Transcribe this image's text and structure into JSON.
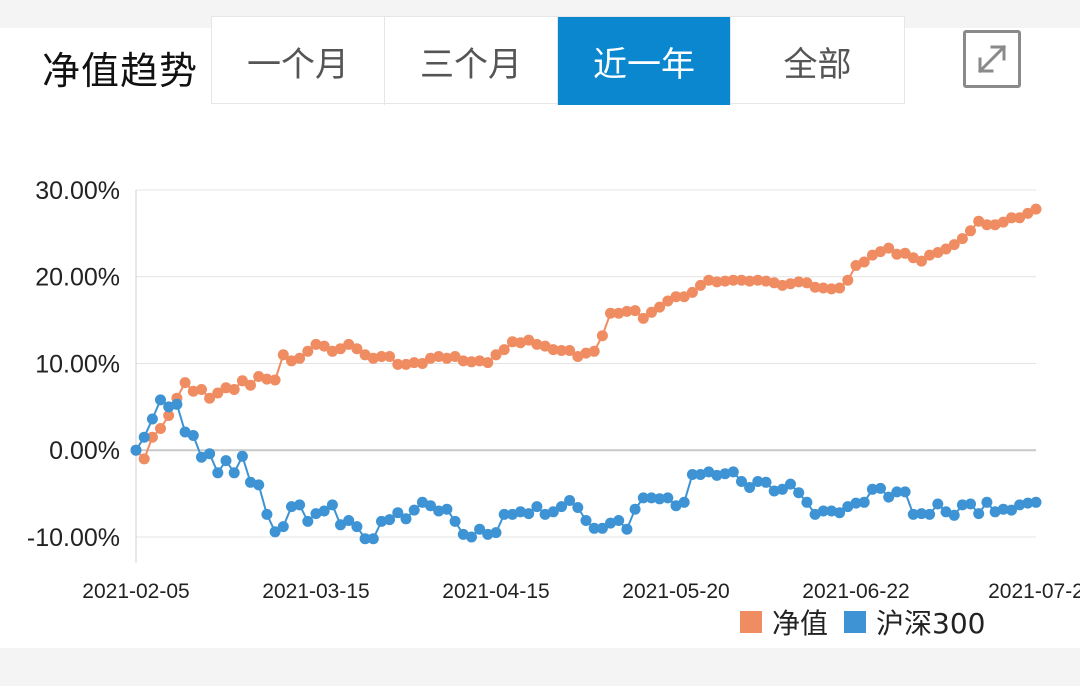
{
  "header": {
    "title": "净值趋势",
    "tabs": [
      {
        "label": "一个月",
        "active": false
      },
      {
        "label": "三个月",
        "active": false
      },
      {
        "label": "近一年",
        "active": true
      },
      {
        "label": "全部",
        "active": false
      }
    ],
    "expand_icon": "expand-icon"
  },
  "colors": {
    "nav": "#ef8c62",
    "index": "#3d93d3",
    "tab_active": "#0a87cf"
  },
  "chart_data": {
    "type": "line",
    "title": "",
    "xlabel": "",
    "ylabel": "",
    "ylim": [
      -13,
      30
    ],
    "y_ticks": [
      30,
      20,
      10,
      0,
      -10
    ],
    "y_tick_labels": [
      "30.00%",
      "20.00%",
      "10.00%",
      "0.00%",
      "-10.00%"
    ],
    "x_tick_labels": [
      "2021-02-05",
      "2021-03-15",
      "2021-04-15",
      "2021-05-20",
      "2021-06-22",
      "2021-07-2"
    ],
    "grid": true,
    "legend": "bottom-right",
    "series": [
      {
        "name": "净值",
        "color": "#ef8c62",
        "values": [
          0.0,
          -1.0,
          1.5,
          2.5,
          4.0,
          6.0,
          7.8,
          6.8,
          7.0,
          6.0,
          6.6,
          7.2,
          7.0,
          8.0,
          7.5,
          8.5,
          8.2,
          8.1,
          11.0,
          10.3,
          10.6,
          11.4,
          12.2,
          12.0,
          11.4,
          11.7,
          12.2,
          11.7,
          11.0,
          10.6,
          10.8,
          10.8,
          9.9,
          9.9,
          10.1,
          10.0,
          10.6,
          10.8,
          10.6,
          10.8,
          10.3,
          10.2,
          10.3,
          10.1,
          11.0,
          11.6,
          12.5,
          12.4,
          12.7,
          12.2,
          12.0,
          11.6,
          11.5,
          11.5,
          10.8,
          11.2,
          11.4,
          13.2,
          15.8,
          15.8,
          16.0,
          16.1,
          15.2,
          15.9,
          16.5,
          17.2,
          17.7,
          17.7,
          18.2,
          19.0,
          19.6,
          19.4,
          19.5,
          19.6,
          19.6,
          19.5,
          19.6,
          19.5,
          19.3,
          19.0,
          19.2,
          19.4,
          19.3,
          18.8,
          18.7,
          18.6,
          18.7,
          19.6,
          21.3,
          21.7,
          22.5,
          22.9,
          23.3,
          22.6,
          22.7,
          22.2,
          21.8,
          22.5,
          22.8,
          23.2,
          23.7,
          24.4,
          25.3,
          26.4,
          26.0,
          26.0,
          26.3,
          26.8,
          26.8,
          27.3,
          27.8
        ]
      },
      {
        "name": "沪深300",
        "color": "#3d93d3",
        "values": [
          0.0,
          1.5,
          3.6,
          5.8,
          5.0,
          5.3,
          2.1,
          1.7,
          -0.8,
          -0.4,
          -2.6,
          -1.2,
          -2.6,
          -0.7,
          -3.7,
          -4.0,
          -7.4,
          -9.4,
          -8.8,
          -6.5,
          -6.3,
          -8.2,
          -7.3,
          -7.0,
          -6.3,
          -8.6,
          -8.1,
          -8.8,
          -10.2,
          -10.2,
          -8.2,
          -8.0,
          -7.2,
          -7.9,
          -6.9,
          -6.0,
          -6.4,
          -7.0,
          -6.8,
          -8.2,
          -9.7,
          -10.0,
          -9.1,
          -9.7,
          -9.5,
          -7.4,
          -7.4,
          -7.1,
          -7.3,
          -6.5,
          -7.4,
          -7.1,
          -6.5,
          -5.8,
          -6.6,
          -8.1,
          -9.0,
          -9.0,
          -8.4,
          -8.1,
          -9.1,
          -6.8,
          -5.5,
          -5.5,
          -5.6,
          -5.5,
          -6.4,
          -6.0,
          -2.8,
          -2.8,
          -2.5,
          -2.9,
          -2.7,
          -2.5,
          -3.6,
          -4.3,
          -3.6,
          -3.7,
          -4.7,
          -4.5,
          -3.9,
          -4.9,
          -6.0,
          -7.4,
          -7.0,
          -7.0,
          -7.2,
          -6.5,
          -6.1,
          -6.0,
          -4.5,
          -4.4,
          -5.4,
          -4.8,
          -4.8,
          -7.4,
          -7.3,
          -7.4,
          -6.2,
          -7.1,
          -7.5,
          -6.3,
          -6.2,
          -7.3,
          -6.0,
          -7.1,
          -6.8,
          -6.9,
          -6.3,
          -6.1,
          -6.0
        ]
      }
    ]
  }
}
